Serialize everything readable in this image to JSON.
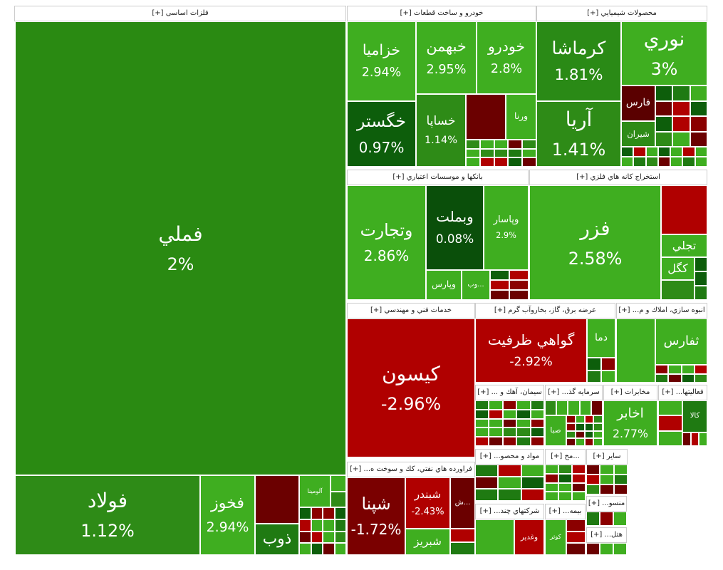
{
  "sectors": [
    {
      "title": "فلزات اساسی [+]",
      "tiles": [
        {
          "name": "فملي",
          "change": "2%",
          "color": "#2a8a12"
        },
        {
          "name": "فولاد",
          "change": "1.12%",
          "color": "#2e8b17"
        },
        {
          "name": "فخوز",
          "change": "2.94%",
          "color": "#3fae20"
        },
        {
          "name": "آلومينا",
          "color": "#3fae20"
        },
        {
          "name": "ذوب",
          "color": "#1f7a12"
        }
      ]
    },
    {
      "title": "خودرو و ساخت قطعات [+]",
      "tiles": [
        {
          "name": "خزاميا",
          "change": "2.94%",
          "color": "#3fae20"
        },
        {
          "name": "خبهمن",
          "change": "2.95%",
          "color": "#3fae20"
        },
        {
          "name": "خودرو",
          "change": "2.8%",
          "color": "#3fae20"
        },
        {
          "name": "خگستر",
          "change": "0.97%",
          "color": "#0d5e0b"
        },
        {
          "name": "خساپا",
          "change": "1.14%",
          "color": "#2e8b17"
        },
        {
          "name": "ورنا",
          "color": "#3fae20"
        }
      ]
    },
    {
      "title": "محصولات شيميايي [+]",
      "tiles": [
        {
          "name": "كرماشا",
          "change": "1.81%",
          "color": "#2a8a16"
        },
        {
          "name": "نوري",
          "change": "3%",
          "color": "#3fae20"
        },
        {
          "name": "آريا",
          "change": "1.41%",
          "color": "#2e8b17"
        },
        {
          "name": "فارس",
          "color": "#5a0000"
        },
        {
          "name": "شيران",
          "color": "#2e8b17"
        }
      ]
    },
    {
      "title": "بانكها و موسسات اعتباري [+]",
      "tiles": [
        {
          "name": "وتجارت",
          "change": "2.86%",
          "color": "#3fae20"
        },
        {
          "name": "وبملت",
          "change": "0.08%",
          "color": "#0a4f0a"
        },
        {
          "name": "وپاسار",
          "change": "2.9%",
          "color": "#3fae20"
        },
        {
          "name": "وپارس",
          "color": "#3fae20"
        },
        {
          "name": "وب...",
          "color": "#3fae20"
        }
      ]
    },
    {
      "title": "استخراج كانه هاي فلزي [+]",
      "tiles": [
        {
          "name": "فزر",
          "change": "2.58%",
          "color": "#3fae20"
        },
        {
          "name": "تجلي",
          "color": "#3fae20"
        },
        {
          "name": "كگل",
          "color": "#3fae20"
        }
      ]
    },
    {
      "title": "خدمات فني و مهندسي [+]",
      "tiles": [
        {
          "name": "كيسون",
          "change": "-2.96%",
          "color": "#b00000"
        }
      ]
    },
    {
      "title": "عرضه برق، گاز، بخاروآب گرم [+]",
      "tiles": [
        {
          "name": "گواهي ظرفيت",
          "change": "-2.92%",
          "color": "#b00000"
        },
        {
          "name": "دما",
          "color": "#3fae20"
        }
      ]
    },
    {
      "title": "انبوه سازي، املاك و م... [+]",
      "tiles": [
        {
          "name": "ثفارس",
          "color": "#3fae20"
        }
      ]
    },
    {
      "title": "فراورده هاي نفتي، كك و سوخت ه... [+]",
      "tiles": [
        {
          "name": "شپنا",
          "change": "-1.72%",
          "color": "#7a0000"
        },
        {
          "name": "شبندر",
          "change": "-2.43%",
          "color": "#b00000"
        },
        {
          "name": "ش...",
          "color": "#6b0000"
        },
        {
          "name": "شبريز",
          "color": "#3fae20"
        }
      ]
    },
    {
      "title": "سيمان، آهك و ... [+]",
      "tiles": []
    },
    {
      "title": "سرمايه گذ... [+]",
      "tiles": [
        {
          "name": "صبا",
          "color": "#3fae20"
        }
      ]
    },
    {
      "title": "مخابرات [+]",
      "tiles": [
        {
          "name": "اخابر",
          "change": "2.77%",
          "color": "#3fae20"
        }
      ]
    },
    {
      "title": "فعاليتها... [+]",
      "tiles": [
        {
          "name": "كالا",
          "color": "#1f7a12"
        }
      ]
    },
    {
      "title": "مواد و محصو... [+]",
      "tiles": []
    },
    {
      "title": "...مح [+]",
      "tiles": []
    },
    {
      "title": "ساير [+]",
      "tiles": []
    },
    {
      "title": "شركتهاي چند... [+]",
      "tiles": [
        {
          "name": "وغدير",
          "color": "#b00000"
        }
      ]
    },
    {
      "title": "بيمه... [+]",
      "tiles": [
        {
          "name": "كوثر",
          "color": "#3fae20"
        }
      ]
    },
    {
      "title": "منسو... [+]",
      "tiles": []
    },
    {
      "title": "هتل... [+]",
      "tiles": []
    }
  ]
}
